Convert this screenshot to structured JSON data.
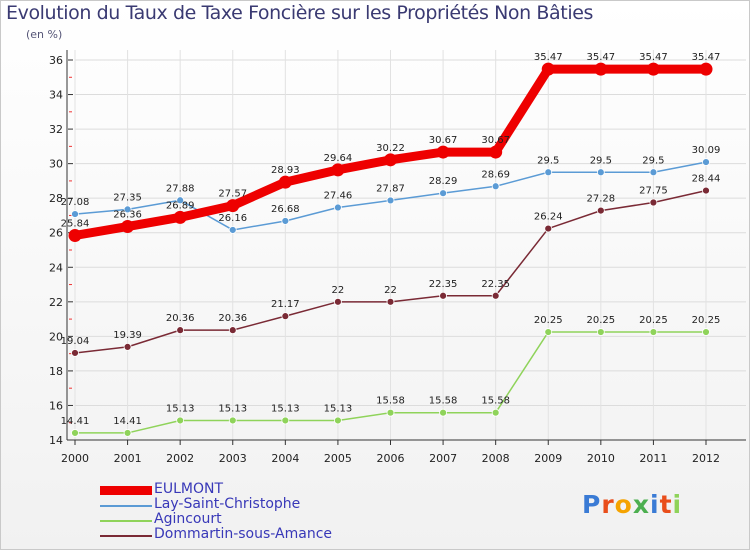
{
  "title": "Evolution du Taux de Taxe Foncière sur les Propriétés Non Bâties",
  "unit_label": "(en %)",
  "logo_text": "Proxiti",
  "chart_data": {
    "type": "line",
    "title": "Evolution du Taux de Taxe Foncière sur les Propriétés Non Bâties",
    "ylabel": "(en %)",
    "xlabel": "",
    "x": [
      "2000",
      "2001",
      "2002",
      "2003",
      "2004",
      "2005",
      "2006",
      "2007",
      "2008",
      "2009",
      "2010",
      "2011",
      "2012"
    ],
    "ylim": [
      14,
      36
    ],
    "yticks": [
      "14",
      "16",
      "18",
      "20",
      "22",
      "24",
      "26",
      "28",
      "30",
      "32",
      "34",
      "36"
    ],
    "grid": true,
    "legend_position": "bottom-left",
    "series": [
      {
        "name": "EULMONT",
        "color": "#ee0000",
        "values": [
          25.84,
          26.36,
          26.89,
          27.57,
          28.93,
          29.64,
          30.22,
          30.67,
          30.67,
          35.47,
          35.47,
          35.47,
          35.47
        ],
        "labels": [
          "25.84",
          "26.36",
          "26.89",
          "27.57",
          "28.93",
          "29.64",
          "30.22",
          "30.67",
          "30.67",
          "35.47",
          "35.47",
          "35.47",
          "35.47"
        ]
      },
      {
        "name": "Lay-Saint-Christophe",
        "color": "#5b9bd5",
        "values": [
          27.08,
          27.35,
          27.88,
          26.16,
          26.68,
          27.46,
          27.87,
          28.29,
          28.69,
          29.5,
          29.5,
          29.5,
          30.09
        ],
        "labels": [
          "27.08",
          "27.35",
          "27.88",
          "26.16",
          "26.68",
          "27.46",
          "27.87",
          "28.29",
          "28.69",
          "29.5",
          "29.5",
          "29.5",
          "30.09"
        ]
      },
      {
        "name": "Agincourt",
        "color": "#8fd35a",
        "values": [
          14.41,
          14.41,
          15.13,
          15.13,
          15.13,
          15.13,
          15.58,
          15.58,
          15.58,
          20.25,
          20.25,
          20.25,
          20.25
        ],
        "labels": [
          "14.41",
          "14.41",
          "15.13",
          "15.13",
          "15.13",
          "15.13",
          "15.58",
          "15.58",
          "15.58",
          "20.25",
          "20.25",
          "20.25",
          "20.25"
        ]
      },
      {
        "name": "Dommartin-sous-Amance",
        "color": "#7a2a35",
        "values": [
          19.04,
          19.39,
          20.36,
          20.36,
          21.17,
          22,
          22,
          22.35,
          22.35,
          26.24,
          27.28,
          27.75,
          28.44
        ],
        "labels": [
          "19.04",
          "19.39",
          "20.36",
          "20.36",
          "21.17",
          "22",
          "22",
          "22.35",
          "22.35",
          "26.24",
          "27.28",
          "27.75",
          "28.44"
        ]
      }
    ]
  }
}
